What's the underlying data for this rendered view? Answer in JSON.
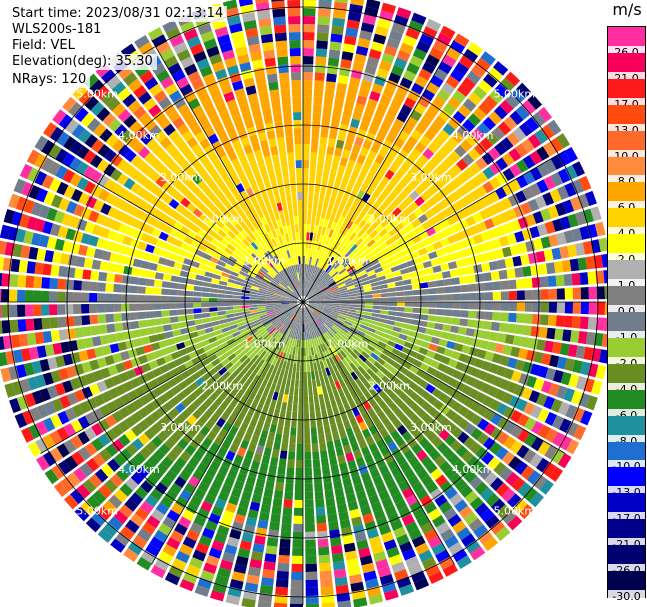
{
  "info": {
    "start_time": "Start time: 2023/08/31 02:13:14",
    "instrument": "WLS200s-181",
    "field": "Field: VEL",
    "elevation": "Elevation(deg): 35.30",
    "nrays": "NRays: 120"
  },
  "colorbar": {
    "unit": "m/s",
    "levels": [
      {
        "value": "26.0",
        "color": "#ff2fa0"
      },
      {
        "value": "21.0",
        "color": "#f7005a"
      },
      {
        "value": "17.0",
        "color": "#ff1a1a"
      },
      {
        "value": "13.0",
        "color": "#ff4b10"
      },
      {
        "value": "10.0",
        "color": "#ff6a2a"
      },
      {
        "value": "8.0",
        "color": "#ff8c3c"
      },
      {
        "value": "6.0",
        "color": "#ffa500"
      },
      {
        "value": "4.0",
        "color": "#ffd200"
      },
      {
        "value": "2.0",
        "color": "#ffff00"
      },
      {
        "value": "1.0",
        "color": "#b0b0b0"
      },
      {
        "value": "0.0",
        "color": "#808080"
      },
      {
        "value": "-1.0",
        "color": "#6f7d8c"
      },
      {
        "value": "-2.0",
        "color": "#9acd32"
      },
      {
        "value": "-4.0",
        "color": "#6b8e23"
      },
      {
        "value": "-6.0",
        "color": "#228b22"
      },
      {
        "value": "-8.0",
        "color": "#1e90a0"
      },
      {
        "value": "-10.0",
        "color": "#1e6fd0"
      },
      {
        "value": "-13.0",
        "color": "#0000ff"
      },
      {
        "value": "-17.0",
        "color": "#0000c8"
      },
      {
        "value": "-21.0",
        "color": "#00008b"
      },
      {
        "value": "-26.0",
        "color": "#000070"
      },
      {
        "value": "-30.0",
        "color": "#000050"
      }
    ]
  },
  "range_labels": [
    "1.00km",
    "2.00km",
    "3.00km",
    "4.00km",
    "5.00km"
  ]
}
